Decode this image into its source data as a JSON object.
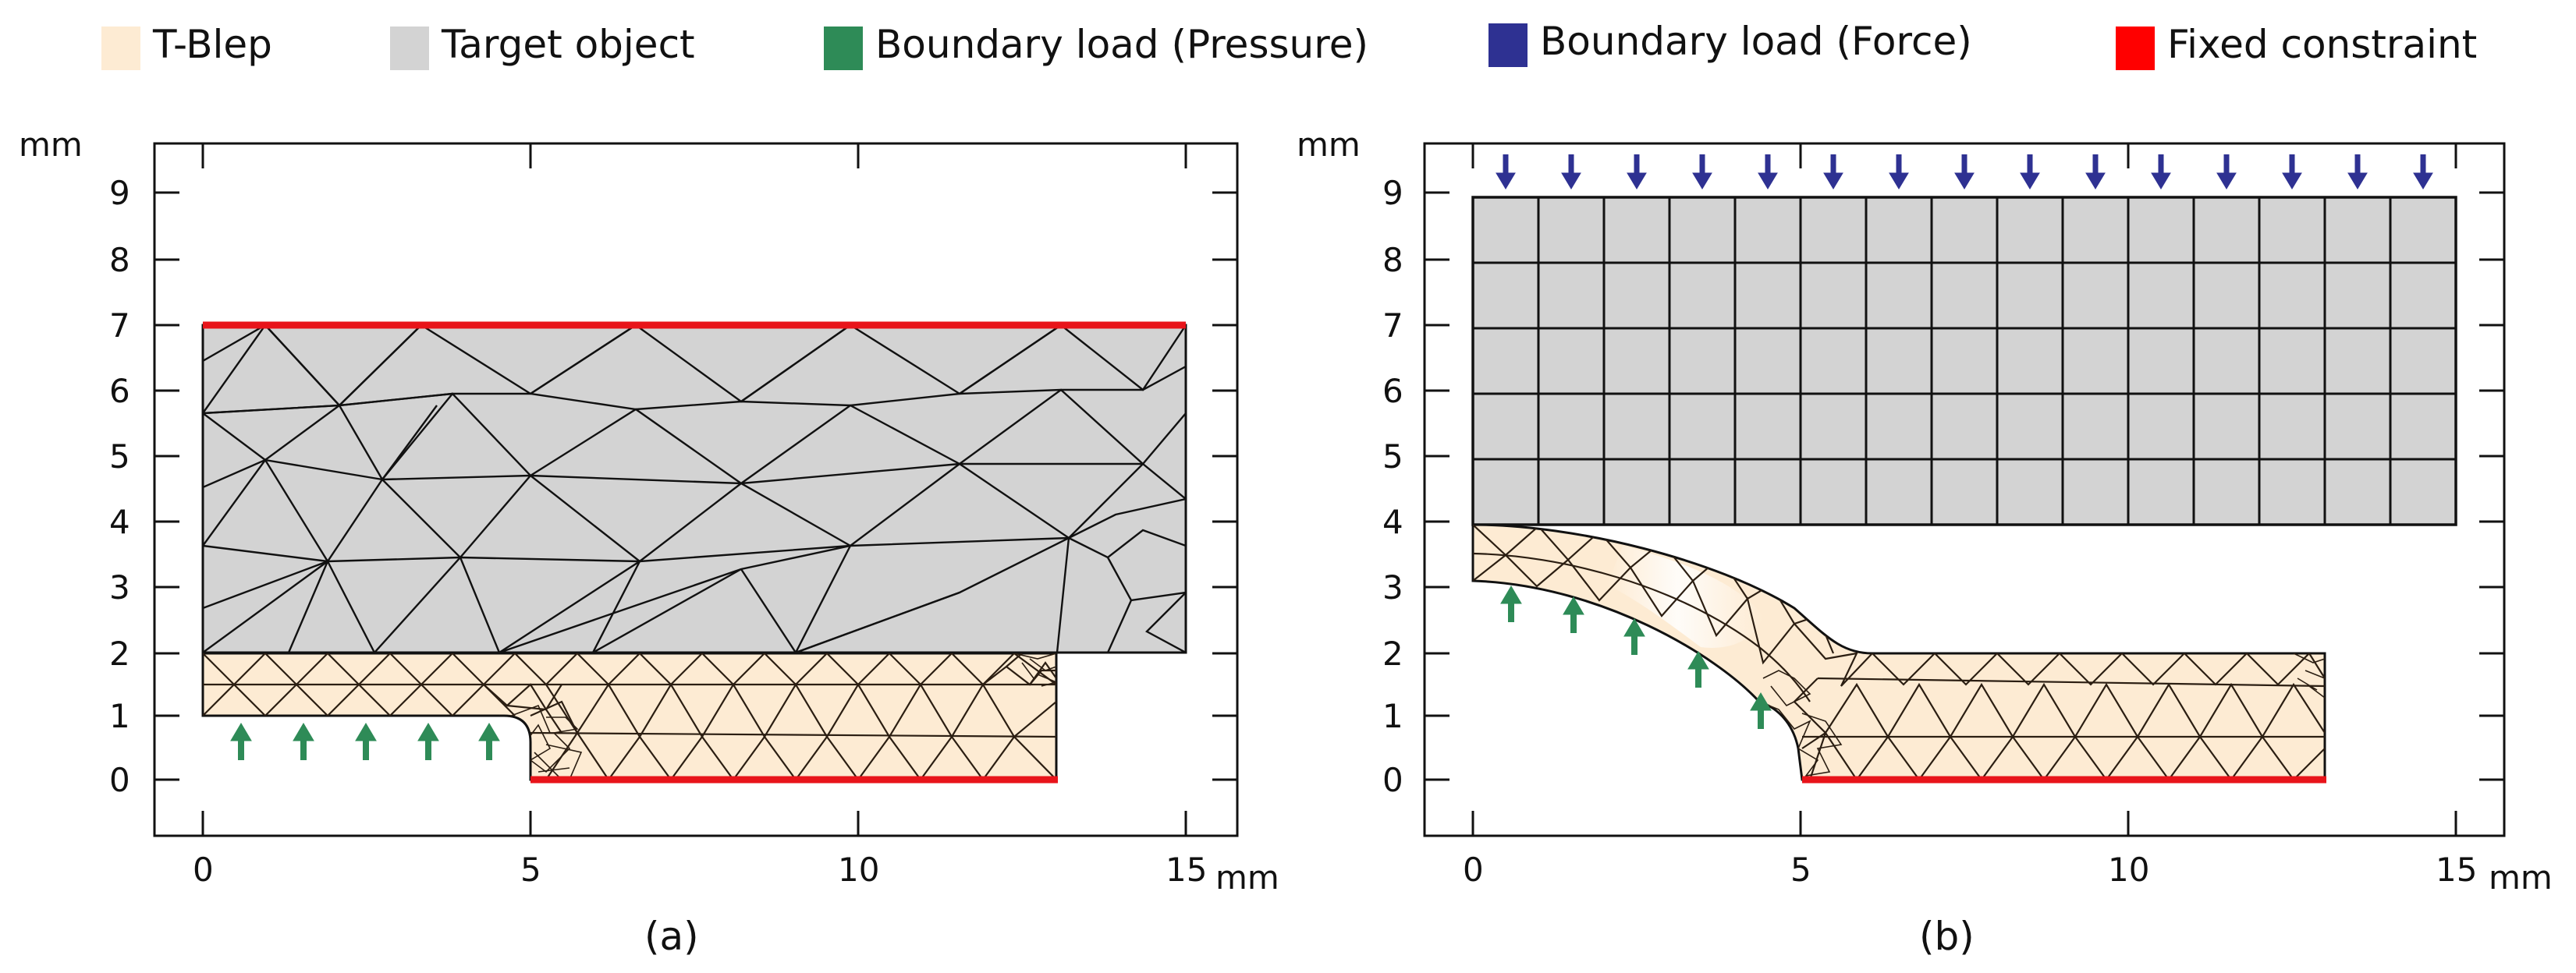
{
  "legend": {
    "items": [
      {
        "label": "T-Blep",
        "color": "#fdebd3"
      },
      {
        "label": "Target object",
        "color": "#d3d3d3"
      },
      {
        "label": "Boundary load (Pressure)",
        "color": "#2e8b57"
      },
      {
        "label": "Boundary load (Force)",
        "color": "#2e3192"
      },
      {
        "label": "Fixed constraint",
        "color": "#ff0000"
      }
    ]
  },
  "colors": {
    "blep": "#fdebd3",
    "target": "#d3d3d3",
    "pressure": "#2e8b57",
    "force": "#2e3192",
    "fixed": "#e8141a",
    "mesh": "#111111",
    "blep_mesh": "#2b1e12"
  },
  "panels": [
    {
      "id": "a",
      "caption": "(a)",
      "y_unit": "mm",
      "x_unit": "mm",
      "x_ticks": [
        "0",
        "5",
        "10",
        "15"
      ],
      "y_ticks": [
        "0",
        "1",
        "2",
        "3",
        "4",
        "5",
        "6",
        "7",
        "8",
        "9"
      ]
    },
    {
      "id": "b",
      "caption": "(b)",
      "y_unit": "mm",
      "x_unit": "mm",
      "x_ticks": [
        "0",
        "5",
        "10",
        "15"
      ],
      "y_ticks": [
        "0",
        "1",
        "2",
        "3",
        "4",
        "5",
        "6",
        "7",
        "8",
        "9"
      ]
    }
  ]
}
